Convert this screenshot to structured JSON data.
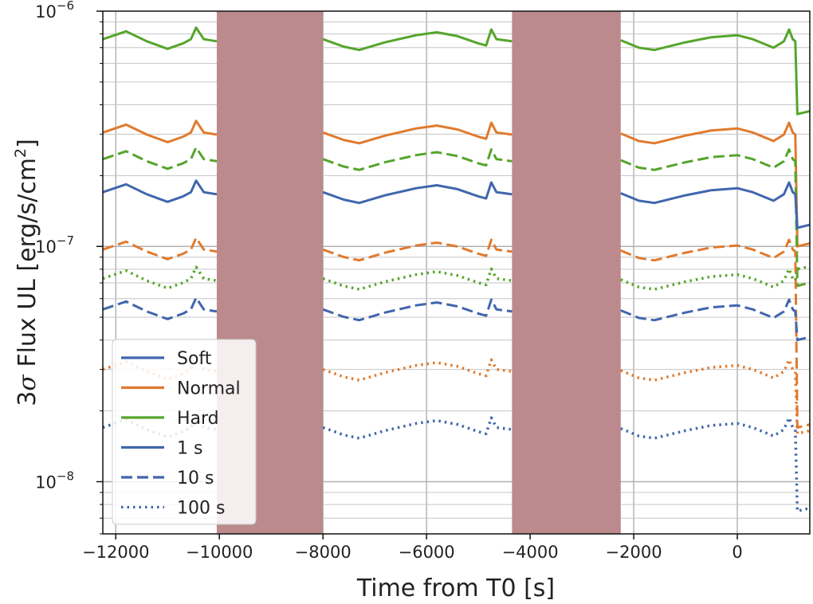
{
  "chart_data": {
    "type": "line",
    "xlabel": "Time from T0 [s]",
    "ylabel_prefix": "3",
    "ylabel_sigma": "σ",
    "ylabel_main": " Flux UL [erg/s/cm",
    "ylabel_sup": "2",
    "ylabel_end": "]",
    "xlim": [
      -12250,
      1400
    ],
    "ylim": [
      6e-09,
      1e-06
    ],
    "yscale": "log",
    "xticks": [
      -12000,
      -10000,
      -8000,
      -6000,
      -4000,
      -2000,
      0
    ],
    "xtick_labels": [
      "−12000",
      "−10000",
      "−8000",
      "−6000",
      "−4000",
      "−2000",
      "0"
    ],
    "ytick_major": [
      {
        "base": "10",
        "exp": "−8",
        "value": 1e-08
      },
      {
        "base": "10",
        "exp": "−7",
        "value": 1e-07
      },
      {
        "base": "10",
        "exp": "−6",
        "value": 1e-06
      }
    ],
    "gaps": [
      {
        "start": -10050,
        "end": -8000
      },
      {
        "start": -4350,
        "end": -2250
      }
    ],
    "gap_color": "#bc8a8c",
    "colors": {
      "Soft": "#4066ad",
      "Normal": "#e07a2e",
      "Hard": "#55a52c"
    },
    "legend": {
      "location": "lower-left",
      "entries": [
        {
          "label": "Soft",
          "color": "#4066ad",
          "style": "solid"
        },
        {
          "label": "Normal",
          "color": "#e07a2e",
          "style": "solid"
        },
        {
          "label": "Hard",
          "color": "#55a52c",
          "style": "solid"
        },
        {
          "label": "1 s",
          "color": "#4066ad",
          "style": "solid"
        },
        {
          "label": "10 s",
          "color": "#4066ad",
          "style": "dashed"
        },
        {
          "label": "100 s",
          "color": "#4066ad",
          "style": "dotted"
        }
      ]
    },
    "series": [
      {
        "name": "Hard 1 s",
        "band": "Hard",
        "timescale": "1 s",
        "base": 7.6e-07,
        "end": 3.65e-07
      },
      {
        "name": "Normal 1 s",
        "band": "Normal",
        "timescale": "1 s",
        "base": 3.05e-07,
        "end": 1e-07
      },
      {
        "name": "Hard 10 s",
        "band": "Hard",
        "timescale": "10 s",
        "base": 2.35e-07,
        "end": 6.8e-08
      },
      {
        "name": "Soft 1 s",
        "band": "Soft",
        "timescale": "1 s",
        "base": 1.7e-07,
        "end": 1.2e-07
      },
      {
        "name": "Normal 10 s",
        "band": "Normal",
        "timescale": "10 s",
        "base": 9.7e-08,
        "end": 1.7e-08
      },
      {
        "name": "Hard 100 s",
        "band": "Hard",
        "timescale": "100 s",
        "base": 7.3e-08,
        "end": 8e-08
      },
      {
        "name": "Soft 10 s",
        "band": "Soft",
        "timescale": "10 s",
        "base": 5.4e-08,
        "end": 4e-08
      },
      {
        "name": "Normal 100 s",
        "band": "Normal",
        "timescale": "100 s",
        "base": 3e-08,
        "end": 1.6e-08
      },
      {
        "name": "Soft 100 s",
        "band": "Soft",
        "timescale": "100 s",
        "base": 1.7e-08,
        "end": 7.5e-09
      }
    ]
  }
}
